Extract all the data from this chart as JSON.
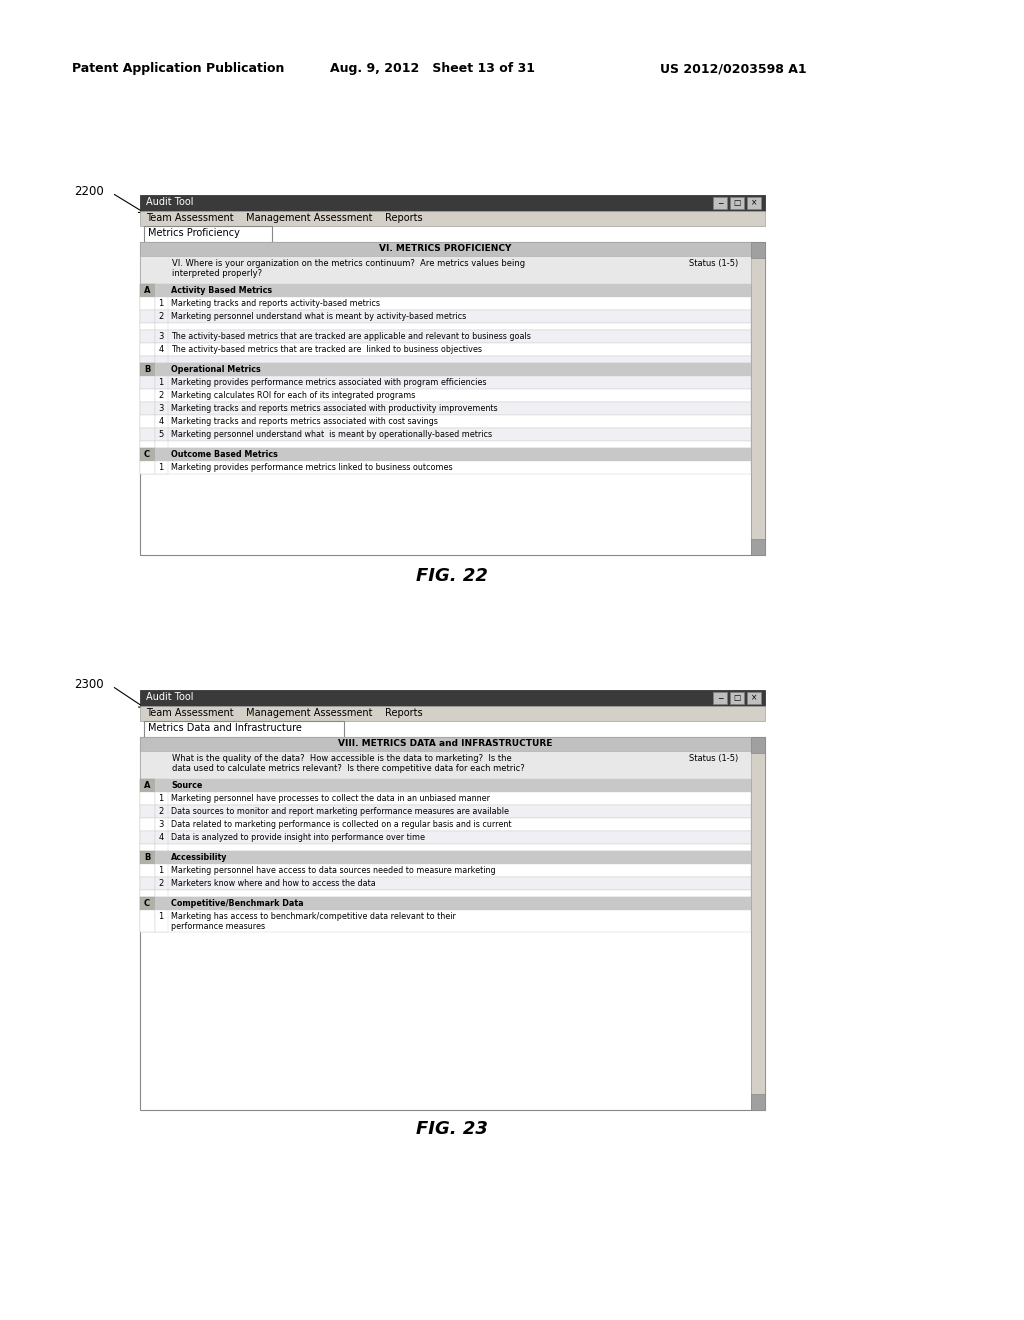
{
  "bg_color": "#ffffff",
  "header_text_left": "Patent Application Publication",
  "header_text_mid": "Aug. 9, 2012   Sheet 13 of 31",
  "header_text_right": "US 2012/0203598 A1",
  "fig22_label": "2200",
  "fig23_label": "2300",
  "fig22_caption": "FIG. 22",
  "fig23_caption": "FIG. 23",
  "window_title": "Audit Tool",
  "menu_items": "Team Assessment    Management Assessment    Reports",
  "tab22": "Metrics Proficiency",
  "tab23": "Metrics Data and Infrastructure",
  "section22_header": "VI. METRICS PROFICIENCY",
  "section22_q1": "VI. Where is your organization on the metrics continuum?  Are metrics values being",
  "section22_q2": "interpreted properly?",
  "status_col": "Status (1-5)",
  "fig22_rows": [
    {
      "col_a": "A",
      "col_num": "",
      "col_text": "Activity Based Metrics",
      "type": "section"
    },
    {
      "col_a": "",
      "col_num": "1",
      "col_text": "Marketing tracks and reports activity-based metrics",
      "type": "item"
    },
    {
      "col_a": "",
      "col_num": "2",
      "col_text": "Marketing personnel understand what is meant by activity-based metrics",
      "type": "item"
    },
    {
      "col_a": "",
      "col_num": "",
      "col_text": "",
      "type": "blank"
    },
    {
      "col_a": "",
      "col_num": "3",
      "col_text": "The activity-based metrics that are tracked are applicable and relevant to business goals",
      "type": "item"
    },
    {
      "col_a": "",
      "col_num": "4",
      "col_text": "The activity-based metrics that are tracked are  linked to business objectives",
      "type": "item"
    },
    {
      "col_a": "",
      "col_num": "",
      "col_text": "",
      "type": "blank"
    },
    {
      "col_a": "B",
      "col_num": "",
      "col_text": "Operational Metrics",
      "type": "section"
    },
    {
      "col_a": "",
      "col_num": "1",
      "col_text": "Marketing provides performance metrics associated with program efficiencies",
      "type": "item"
    },
    {
      "col_a": "",
      "col_num": "2",
      "col_text": "Marketing calculates ROI for each of its integrated programs",
      "type": "item"
    },
    {
      "col_a": "",
      "col_num": "3",
      "col_text": "Marketing tracks and reports metrics associated with productivity improvements",
      "type": "item"
    },
    {
      "col_a": "",
      "col_num": "4",
      "col_text": "Marketing tracks and reports metrics associated with cost savings",
      "type": "item"
    },
    {
      "col_a": "",
      "col_num": "5",
      "col_text": "Marketing personnel understand what  is meant by operationally-based metrics",
      "type": "item"
    },
    {
      "col_a": "",
      "col_num": "",
      "col_text": "",
      "type": "blank"
    },
    {
      "col_a": "C",
      "col_num": "",
      "col_text": "Outcome Based Metrics",
      "type": "section"
    },
    {
      "col_a": "",
      "col_num": "1",
      "col_text": "Marketing provides performance metrics linked to business outcomes",
      "type": "item"
    }
  ],
  "section23_header": "VIII. METRICS DATA and INFRASTRUCTURE",
  "section23_q1": "What is the quality of the data?  How accessible is the data to marketing?  Is the",
  "section23_q2": "data used to calculate metrics relevant?  Is there competitive data for each metric?",
  "status23_col": "Status (1-5)",
  "fig23_rows": [
    {
      "col_a": "A",
      "col_num": "",
      "col_text": "Source",
      "type": "section"
    },
    {
      "col_a": "",
      "col_num": "1",
      "col_text": "Marketing personnel have processes to collect the data in an unbiased manner",
      "type": "item"
    },
    {
      "col_a": "",
      "col_num": "2",
      "col_text": "Data sources to monitor and report marketing performance measures are available",
      "type": "item"
    },
    {
      "col_a": "",
      "col_num": "3",
      "col_text": "Data related to marketing performance is collected on a regular basis and is current",
      "type": "item"
    },
    {
      "col_a": "",
      "col_num": "4",
      "col_text": "Data is analyzed to provide insight into performance over time",
      "type": "item"
    },
    {
      "col_a": "",
      "col_num": "",
      "col_text": "",
      "type": "blank"
    },
    {
      "col_a": "B",
      "col_num": "",
      "col_text": "Accessibility",
      "type": "section"
    },
    {
      "col_a": "",
      "col_num": "1",
      "col_text": "Marketing personnel have access to data sources needed to measure marketing",
      "type": "item"
    },
    {
      "col_a": "",
      "col_num": "2",
      "col_text": "Marketers know where and how to access the data",
      "type": "item"
    },
    {
      "col_a": "",
      "col_num": "",
      "col_text": "",
      "type": "blank"
    },
    {
      "col_a": "C",
      "col_num": "",
      "col_text": "Competitive/Benchmark Data",
      "type": "section"
    },
    {
      "col_a": "",
      "col_num": "1",
      "col_text": "Marketing has access to benchmark/competitive data relevant to their performance measures",
      "type": "item_wrap"
    }
  ]
}
